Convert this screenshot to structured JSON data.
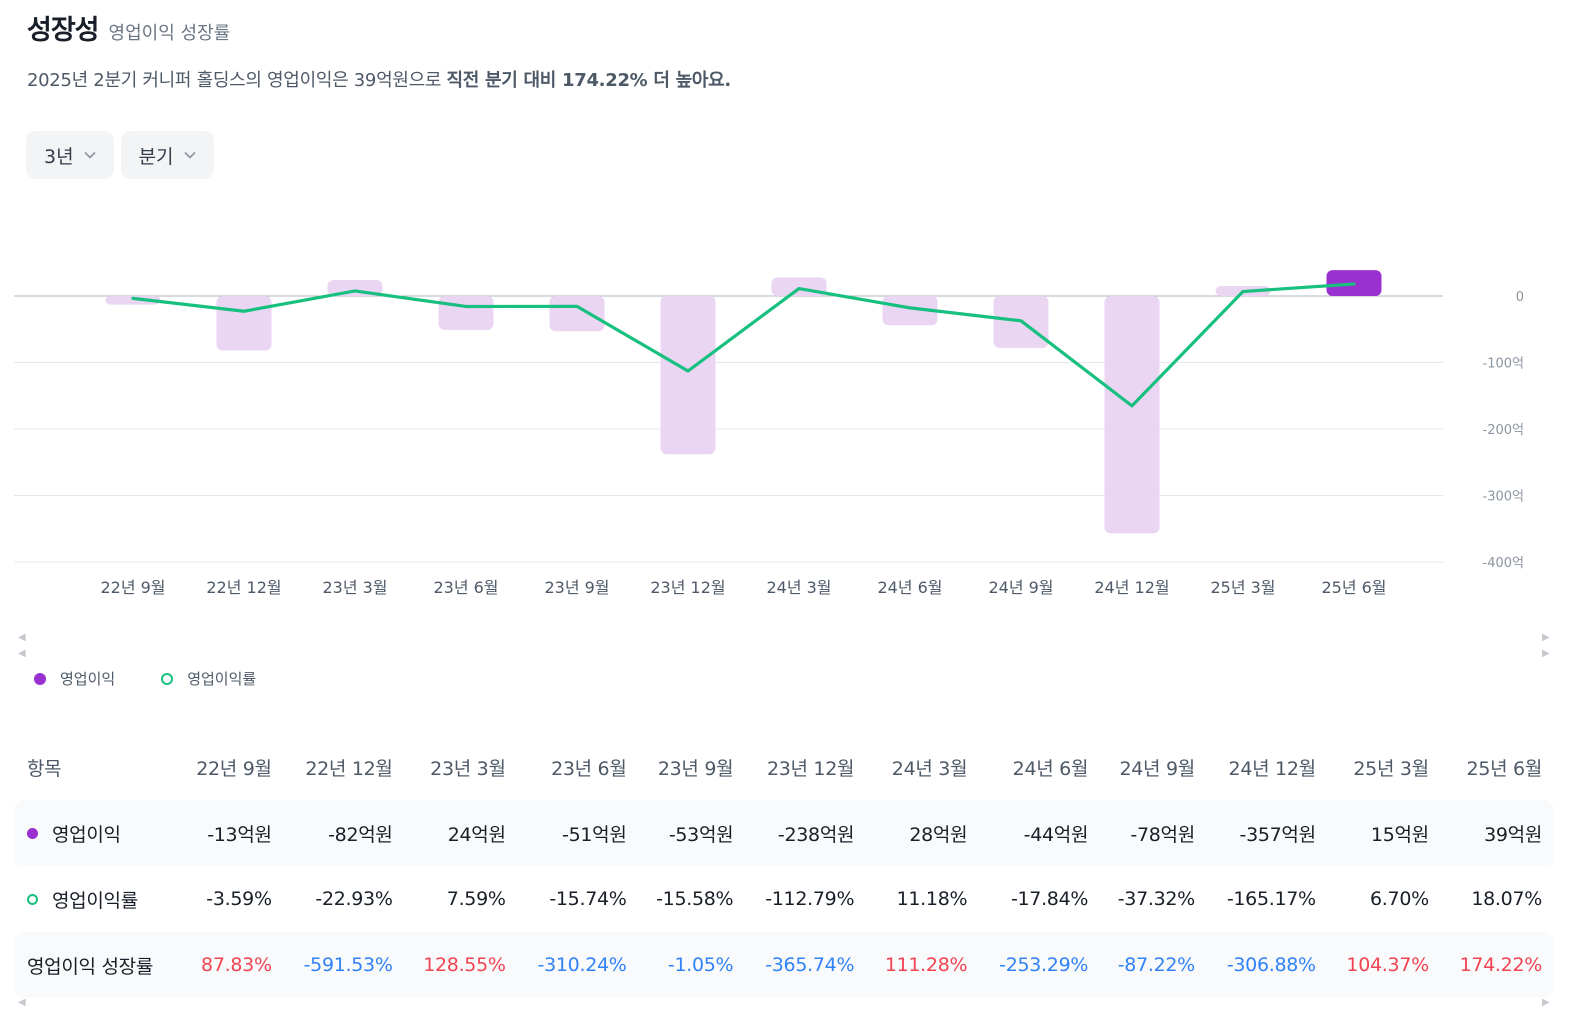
{
  "header": {
    "title": "성장성",
    "subtitle": "영업이익 성장률",
    "summary_plain": "2025년 2분기 커니퍼 홀딩스의 영업이익은 39억원으로 ",
    "summary_bold": "직전 분기 대비 174.22% 더 높아요."
  },
  "filters": {
    "period": "3년",
    "interval": "분기"
  },
  "legend": {
    "bar": "영업이익",
    "line": "영업이익률"
  },
  "colors": {
    "bar_light": "#ead5f3",
    "bar_accent": "#9b30d0",
    "line": "#17c07e",
    "positive": "#f04452",
    "negative": "#3182f6"
  },
  "chart_data": {
    "type": "bar",
    "categories": [
      "22년 9월",
      "22년 12월",
      "23년 3월",
      "23년 6월",
      "23년 9월",
      "23년 12월",
      "24년 3월",
      "24년 6월",
      "24년 9월",
      "24년 12월",
      "25년 3월",
      "25년 6월"
    ],
    "series": [
      {
        "name": "영업이익",
        "unit": "억원",
        "values": [
          -13,
          -82,
          24,
          -51,
          -53,
          -238,
          28,
          -44,
          -78,
          -357,
          15,
          39
        ]
      },
      {
        "name": "영업이익률",
        "unit": "%",
        "values": [
          -3.59,
          -22.93,
          7.59,
          -15.74,
          -15.58,
          -112.79,
          11.18,
          -17.84,
          -37.32,
          -165.17,
          6.7,
          18.07
        ]
      }
    ],
    "y_ticks": [
      0,
      -100,
      -200,
      -300,
      -400
    ],
    "y_tick_labels": [
      "0",
      "-100억",
      "-200억",
      "-300억",
      "-400억"
    ],
    "ylim": [
      -400,
      30
    ],
    "grid": true
  },
  "table": {
    "header_label": "항목",
    "columns": [
      "22년 9월",
      "22년 12월",
      "23년 3월",
      "23년 6월",
      "23년 9월",
      "23년 12월",
      "24년 3월",
      "24년 6월",
      "24년 9월",
      "24년 12월",
      "25년 3월",
      "25년 6월"
    ],
    "rows": [
      {
        "label": "영업이익",
        "values": [
          "-13억원",
          "-82억원",
          "24억원",
          "-51억원",
          "-53억원",
          "-238억원",
          "28억원",
          "-44억원",
          "-78억원",
          "-357억원",
          "15억원",
          "39억원"
        ]
      },
      {
        "label": "영업이익률",
        "values": [
          "-3.59%",
          "-22.93%",
          "7.59%",
          "-15.74%",
          "-15.58%",
          "-112.79%",
          "11.18%",
          "-17.84%",
          "-37.32%",
          "-165.17%",
          "6.70%",
          "18.07%"
        ]
      },
      {
        "label": "영업이익 성장률",
        "values": [
          "87.83%",
          "-591.53%",
          "128.55%",
          "-310.24%",
          "-1.05%",
          "-365.74%",
          "111.28%",
          "-253.29%",
          "-87.22%",
          "-306.88%",
          "104.37%",
          "174.22%"
        ]
      }
    ]
  }
}
